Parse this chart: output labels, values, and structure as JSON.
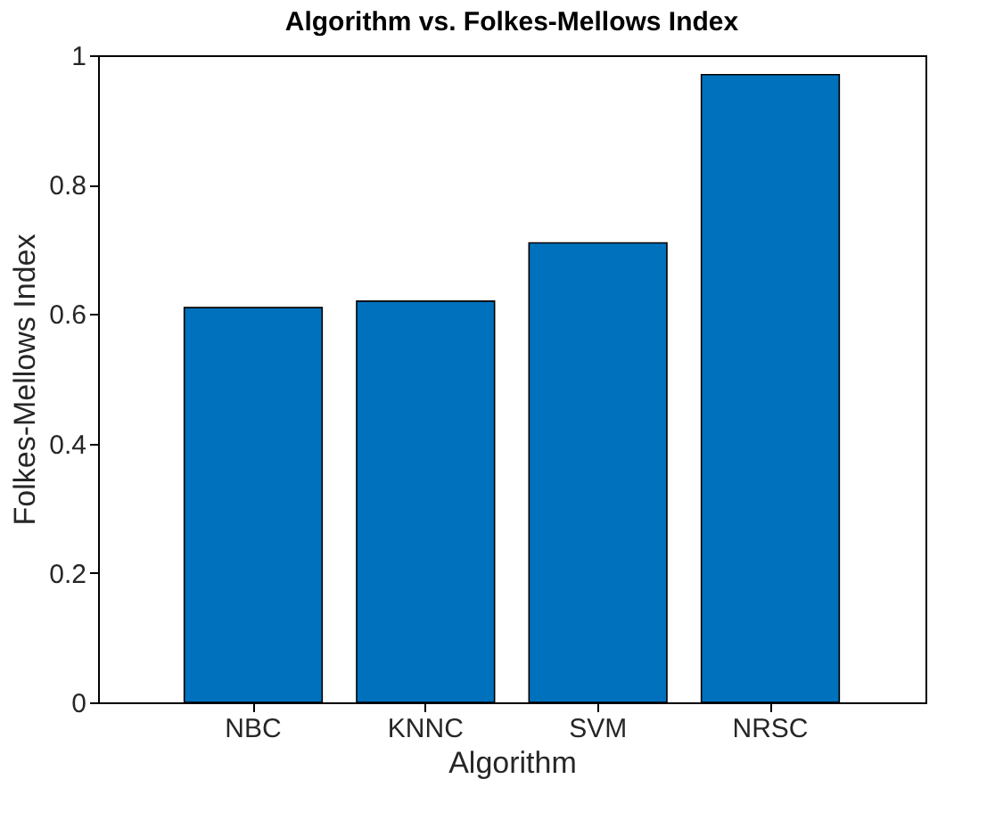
{
  "chart_data": {
    "type": "bar",
    "title": "Algorithm vs. Folkes-Mellows Index",
    "xlabel": "Algorithm",
    "ylabel": "Folkes-Mellows Index",
    "categories": [
      "NBC",
      "KNNC",
      "SVM",
      "NRSC"
    ],
    "values": [
      0.61,
      0.62,
      0.71,
      0.97
    ],
    "color": "#0072bd",
    "ylim": [
      0,
      1
    ],
    "yticks": [
      0,
      0.2,
      0.4,
      0.6,
      0.8,
      1
    ],
    "grid": false
  }
}
